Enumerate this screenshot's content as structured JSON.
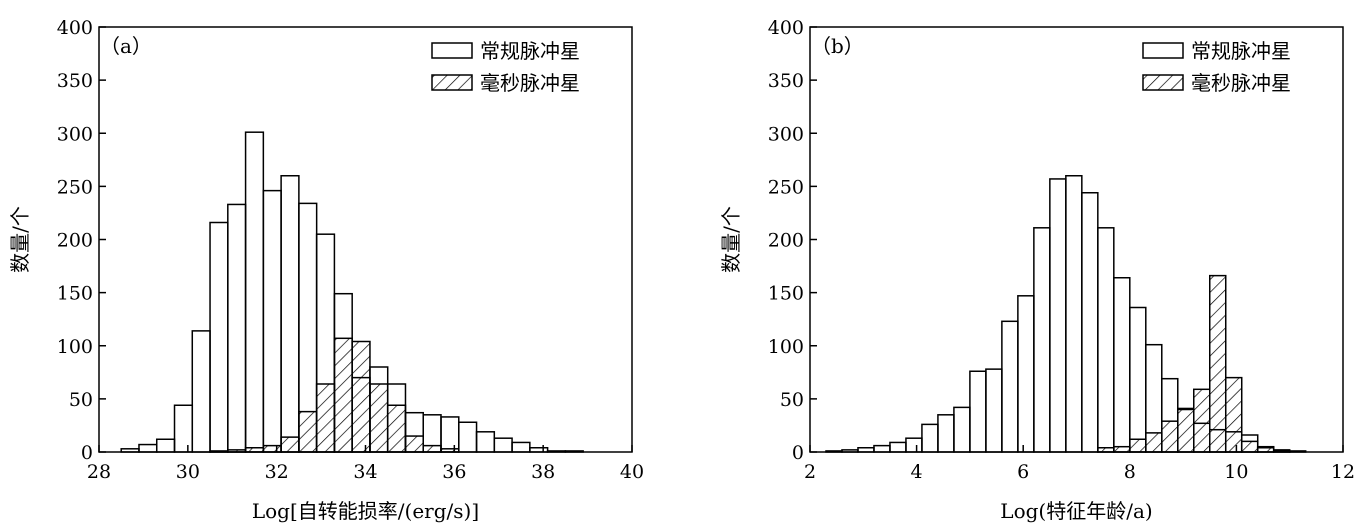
{
  "chart_data": [
    {
      "type": "histogram",
      "panel_label": "（a）",
      "xlabel": "Log[自转能损率/(erg/s)]",
      "ylabel": "数量/个",
      "xlim": [
        28,
        40
      ],
      "ylim": [
        0,
        400
      ],
      "xticks": [
        28,
        30,
        32,
        34,
        36,
        38,
        40
      ],
      "yticks": [
        0,
        50,
        100,
        150,
        200,
        250,
        300,
        350,
        400
      ],
      "bin_width": 0.4,
      "legend_position": "top-right",
      "series": [
        {
          "name": "常规脉冲星",
          "fill": "none",
          "bin_start": 28.5,
          "values": [
            3,
            7,
            12,
            44,
            114,
            216,
            233,
            301,
            246,
            260,
            234,
            205,
            149,
            70,
            80,
            64,
            37,
            35,
            33,
            28,
            19,
            13,
            9,
            4,
            1,
            1
          ]
        },
        {
          "name": "毫秒脉冲星",
          "fill": "hatch",
          "bin_start": 30.5,
          "values": [
            1,
            2,
            4,
            6,
            14,
            38,
            64,
            107,
            104,
            64,
            44,
            15,
            6,
            3
          ]
        }
      ]
    },
    {
      "type": "histogram",
      "panel_label": "（b）",
      "xlabel": "Log(特征年龄/a)",
      "ylabel": "数量/个",
      "xlim": [
        2,
        12
      ],
      "ylim": [
        0,
        400
      ],
      "xticks": [
        2,
        4,
        6,
        8,
        10,
        12
      ],
      "yticks": [
        0,
        50,
        100,
        150,
        200,
        250,
        300,
        350,
        400
      ],
      "bin_width": 0.3,
      "legend_position": "top-right",
      "series": [
        {
          "name": "常规脉冲星",
          "fill": "none",
          "bin_start": 2.3,
          "values": [
            1,
            2,
            4,
            6,
            9,
            13,
            26,
            35,
            42,
            76,
            78,
            123,
            147,
            211,
            257,
            260,
            244,
            211,
            164,
            136,
            101,
            69,
            41,
            27,
            21,
            19,
            16,
            5,
            2,
            1
          ]
        },
        {
          "name": "毫秒脉冲星",
          "fill": "hatch",
          "bin_start": 7.4,
          "values": [
            4,
            5,
            12,
            18,
            29,
            40,
            59,
            166,
            70,
            10,
            4,
            1
          ]
        }
      ]
    }
  ]
}
